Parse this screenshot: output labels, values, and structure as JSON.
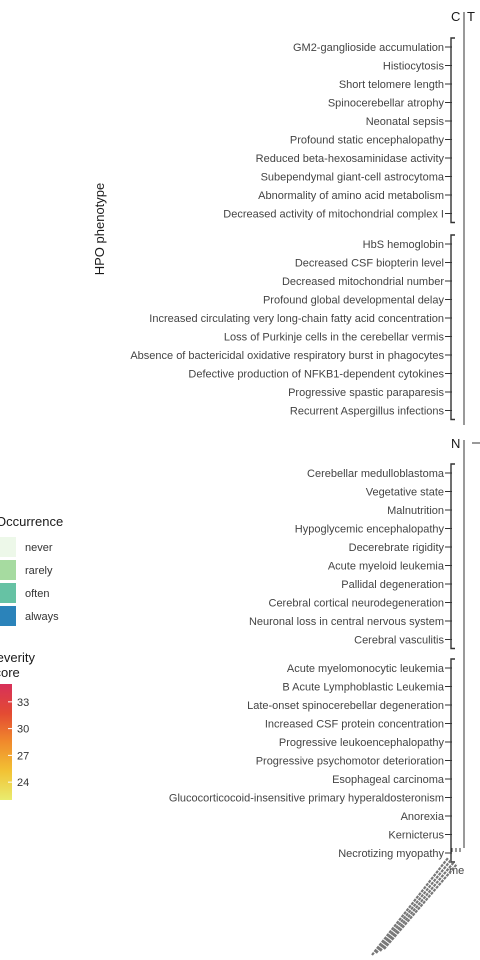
{
  "chart_data": {
    "type": "heatmap",
    "ylabel": "HPO phenotype",
    "panel_strips": [
      "C",
      "T",
      "N"
    ],
    "groups": [
      {
        "name": "C",
        "subgroups": [
          [
            "GM2-ganglioside accumulation",
            "Histiocytosis",
            "Short telomere length",
            "Spinocerebellar atrophy",
            "Neonatal sepsis",
            "Profound static encephalopathy",
            "Reduced beta-hexosaminidase activity",
            "Subependymal giant-cell astrocytoma",
            "Abnormality of amino acid metabolism",
            "Decreased activity of mitochondrial complex I"
          ],
          [
            "HbS hemoglobin",
            "Decreased CSF biopterin level",
            "Decreased mitochondrial number",
            "Profound global developmental delay",
            "Increased circulating very long-chain fatty acid concentration",
            "Loss of Purkinje cells in the cerebellar vermis",
            "Absence of bactericidal oxidative respiratory burst in phagocytes",
            "Defective production of NFKB1-dependent cytokines",
            "Progressive spastic paraparesis",
            "Recurrent Aspergillus infections"
          ]
        ]
      },
      {
        "name": "N",
        "subgroups": [
          [
            "Cerebellar medulloblastoma",
            "Vegetative state",
            "Malnutrition",
            "Hypoglycemic encephalopathy",
            "Decerebrate rigidity",
            "Acute myeloid leukemia",
            "Pallidal degeneration",
            "Cerebral cortical neurodegeneration",
            "Neuronal loss in central nervous system",
            "Cerebral vasculitis"
          ],
          [
            "Acute myelomonocytic leukemia",
            "B Acute Lymphoblastic Leukemia",
            "Late-onset spinocerebellar degeneration",
            "Increased CSF protein concentration",
            "Progressive leukoencephalopathy",
            "Progressive psychomotor deterioration",
            "Esophageal carcinoma",
            "Glucocorticocoid-insensitive primary hyperaldosteronism",
            "Anorexia",
            "Kernicterus",
            "Necrotizing myopathy"
          ]
        ]
      }
    ],
    "legends": {
      "occurrence": {
        "title": "Occurrence",
        "levels": [
          {
            "label": "never",
            "color": "#edf8e9"
          },
          {
            "label": "rarely",
            "color": "#a6dba0"
          },
          {
            "label": "often",
            "color": "#66c2a4"
          },
          {
            "label": "always",
            "color": "#2b83ba"
          }
        ]
      },
      "severity": {
        "title": "Severity score",
        "range": [
          22,
          35
        ],
        "ticks": [
          24,
          27,
          30,
          33
        ],
        "colors": [
          "#e9ec6f",
          "#f2c234",
          "#f08a2c",
          "#e34a33",
          "#d7305a"
        ]
      }
    }
  }
}
